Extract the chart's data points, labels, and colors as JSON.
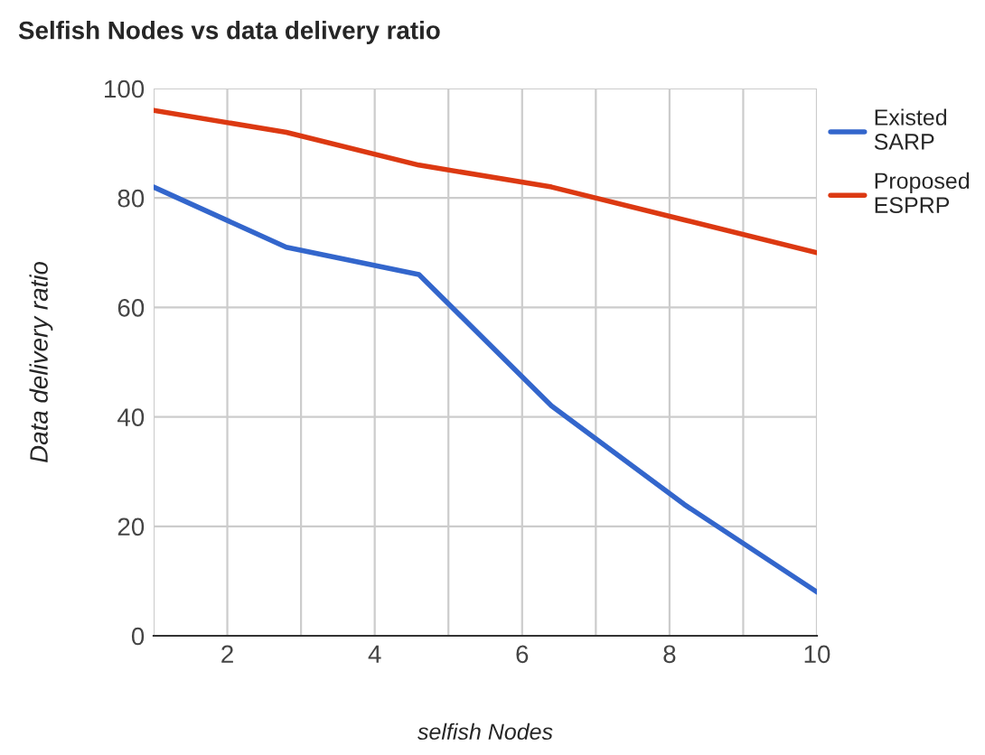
{
  "chart_data": {
    "type": "line",
    "title": "Selfish Nodes vs data delivery ratio",
    "xlabel": "selfish Nodes",
    "ylabel": "Data delivery ratio",
    "x": [
      1,
      2.8,
      4.6,
      6.4,
      8.2,
      10
    ],
    "series": [
      {
        "name": "Existed SARP",
        "color": "#3366cc",
        "values": [
          82,
          71,
          66,
          42,
          24,
          8
        ]
      },
      {
        "name": "Proposed ESPRP",
        "color": "#dc3912",
        "values": [
          96,
          92,
          86,
          82,
          76,
          70
        ]
      }
    ],
    "xlim": [
      1,
      10
    ],
    "xticks": [
      {
        "value": 1,
        "label": null
      },
      2,
      {
        "value": 3,
        "label": null
      },
      4,
      {
        "value": 5,
        "label": null
      },
      6,
      {
        "value": 7,
        "label": null
      },
      8,
      {
        "value": 9,
        "label": null
      },
      10
    ],
    "ylim": [
      0,
      100
    ],
    "yticks": [
      0,
      20,
      40,
      60,
      80,
      100
    ],
    "grid": true,
    "legend": "top right",
    "marker": "none",
    "line_style": "solid"
  }
}
